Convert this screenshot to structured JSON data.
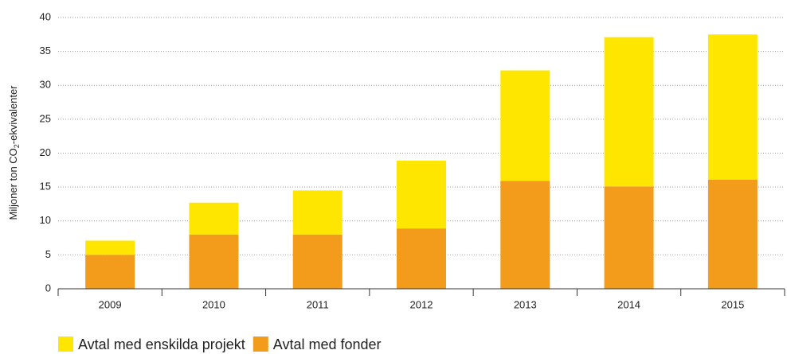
{
  "chart_data": {
    "type": "stacked_bar",
    "y_label_parts": [
      "Miljoner ton CO",
      "2",
      "-ekvivalenter"
    ],
    "categories": [
      "2009",
      "2010",
      "2011",
      "2012",
      "2013",
      "2014",
      "2015"
    ],
    "series": [
      {
        "name": "Avtal med enskilda projekt",
        "color": "#ffe600",
        "values": [
          2.1,
          4.7,
          6.5,
          10,
          16.3,
          22,
          21.4
        ]
      },
      {
        "name": "Avtal med fonder",
        "color": "#f39c1c",
        "values": [
          5,
          8,
          8,
          8.9,
          15.9,
          15.1,
          16.1
        ]
      }
    ],
    "ylim": [
      0,
      40
    ],
    "yticks": [
      0,
      5,
      10,
      15,
      20,
      25,
      30,
      35,
      40
    ],
    "grid": true
  }
}
